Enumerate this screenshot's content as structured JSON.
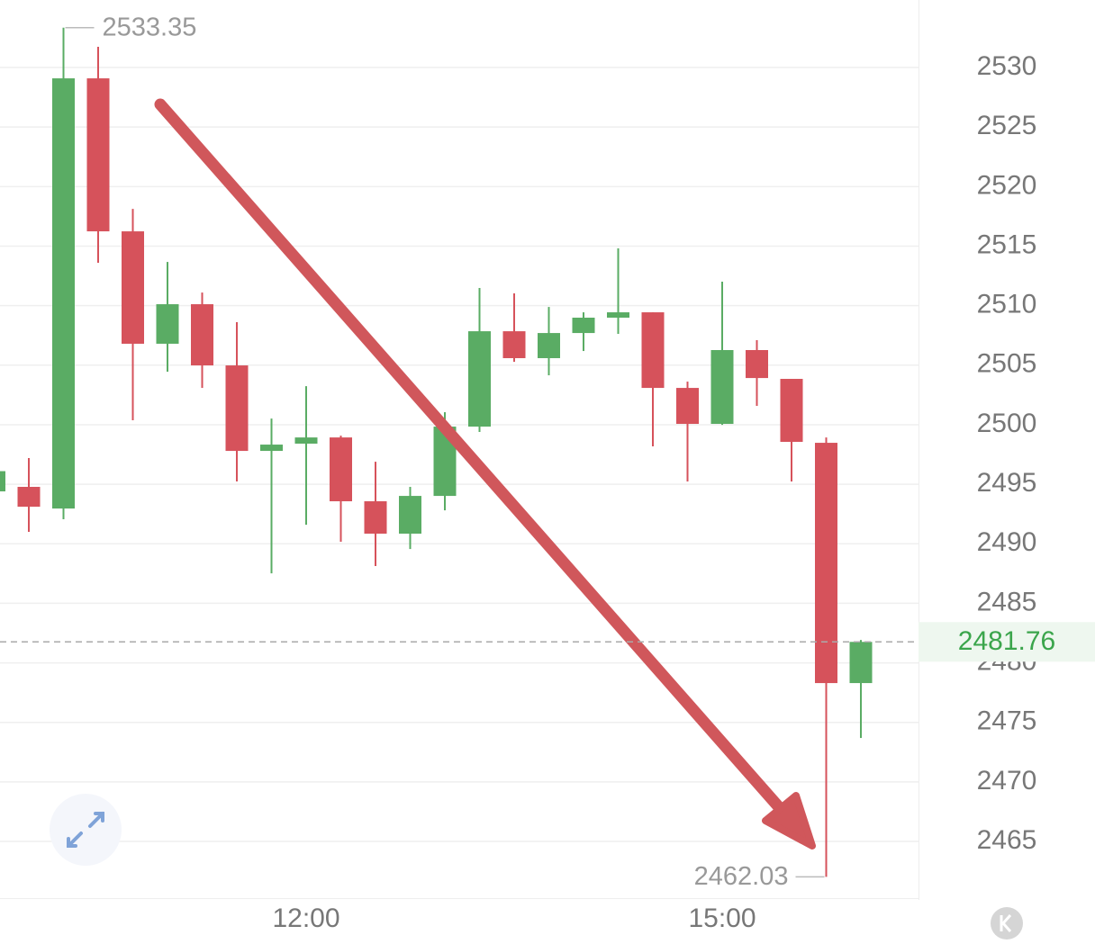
{
  "chart_data": {
    "type": "candlestick",
    "categories": [
      null,
      null,
      null,
      null,
      null,
      null,
      null,
      null,
      null,
      "12:00",
      null,
      null,
      null,
      null,
      null,
      null,
      null,
      null,
      null,
      null,
      null,
      "15:00",
      null,
      null,
      null,
      null
    ],
    "open": [
      2494.4,
      2494.78,
      2492.96,
      2529.09,
      2516.24,
      2506.8,
      2510.12,
      2504.98,
      2497.8,
      2498.41,
      2498.93,
      2493.57,
      2490.85,
      2494.02,
      2499.84,
      2507.85,
      2505.59,
      2507.7,
      2508.99,
      2509.44,
      2503.09,
      2500.07,
      2506.27,
      2503.85,
      2498.48,
      2478.3
    ],
    "high": [
      2496.5,
      2497.2,
      2533.35,
      2531.74,
      2518.13,
      2513.67,
      2511.1,
      2508.61,
      2500.52,
      2503.24,
      2499.08,
      2496.89,
      2494.78,
      2501.05,
      2511.48,
      2511.03,
      2509.89,
      2509.44,
      2514.81,
      2509.44,
      2503.62,
      2512.01,
      2507.1,
      2503.85,
      2498.93,
      2481.92
    ],
    "low": [
      2494.2,
      2491.0,
      2492.06,
      2513.6,
      2500.37,
      2504.45,
      2503.09,
      2495.23,
      2487.52,
      2491.6,
      2490.17,
      2488.13,
      2489.56,
      2492.81,
      2499.39,
      2505.28,
      2504.15,
      2506.19,
      2507.63,
      2498.18,
      2495.23,
      2499.99,
      2501.58,
      2495.23,
      2462.03,
      2473.69
    ],
    "close": [
      2496.1,
      2493.11,
      2529.09,
      2516.24,
      2506.8,
      2510.12,
      2504.98,
      2497.8,
      2498.33,
      2498.93,
      2493.57,
      2490.85,
      2494.02,
      2499.84,
      2507.85,
      2505.59,
      2507.7,
      2508.99,
      2509.44,
      2503.09,
      2500.07,
      2506.27,
      2503.92,
      2498.56,
      2478.3,
      2481.76
    ],
    "up_color": "#5aac64",
    "down_color": "#d6525b",
    "ylim": [
      2460.09,
      2535.67
    ],
    "yticks": [
      2465,
      2470,
      2475,
      2480,
      2485,
      2490,
      2495,
      2500,
      2505,
      2510,
      2515,
      2520,
      2525,
      2530
    ],
    "grid": true
  }
}
